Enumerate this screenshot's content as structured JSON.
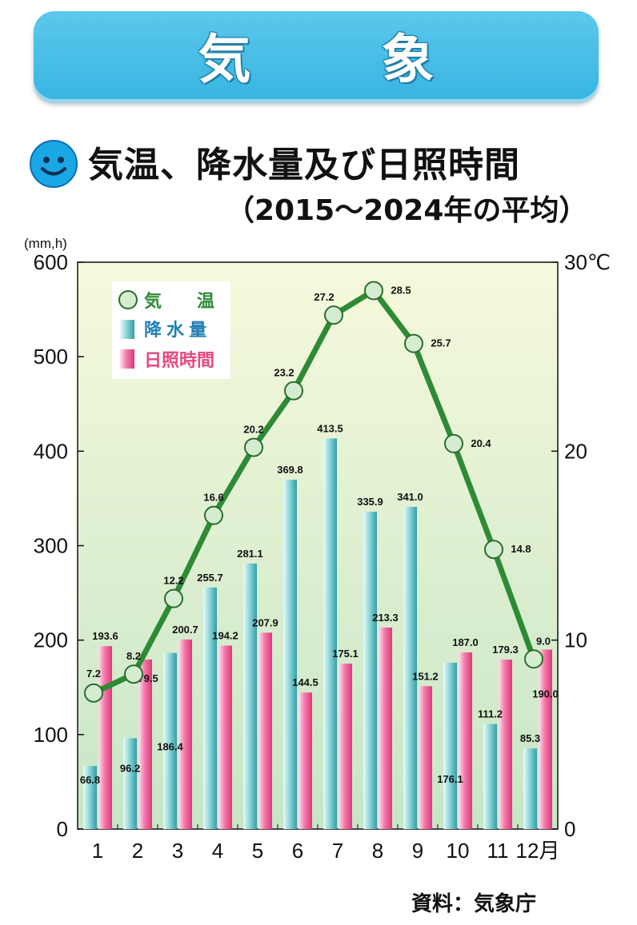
{
  "banner": {
    "title": "気 象"
  },
  "heading": {
    "title": "気温、降水量及び日照時間",
    "subtitle": "（2015～2024年の平均）",
    "icon": "smiley-face-icon"
  },
  "source": "資料：気象庁",
  "colors": {
    "banner": "#3ab7e3",
    "temperature_line": "#2e8b35",
    "marker_fill": "#d6ecd0",
    "precipitation_bar": "#2f9fa8",
    "sunshine_bar": "#e0367a",
    "plot_background_top": "#f7f9dc",
    "plot_background_bottom": "#c6e6c6"
  },
  "chart_data": {
    "type": "bar",
    "categories": [
      "1",
      "2",
      "3",
      "4",
      "5",
      "6",
      "7",
      "8",
      "9",
      "10",
      "11",
      "12月"
    ],
    "left_axis": {
      "unit": "(mm,h)",
      "ylim": [
        0,
        600
      ],
      "ticks": [
        "0",
        "100",
        "200",
        "300",
        "400",
        "500",
        "600"
      ]
    },
    "right_axis": {
      "unit": "30℃",
      "ylim": [
        0,
        30
      ],
      "ticks": [
        "0",
        "10",
        "20",
        "30℃"
      ]
    },
    "series": [
      {
        "name": "降 水 量",
        "type": "bar",
        "axis": "left",
        "values": [
          66.8,
          96.2,
          186.4,
          255.7,
          281.1,
          369.8,
          413.5,
          335.9,
          341.0,
          176.1,
          111.2,
          85.3
        ],
        "labels": [
          "66.8",
          "96.2",
          "186.4",
          "255.7",
          "281.1",
          "369.8",
          "413.5",
          "335.9",
          "341.0",
          "176.1",
          "111.2",
          "85.3"
        ]
      },
      {
        "name": "日照時間",
        "type": "bar",
        "axis": "left",
        "values": [
          193.6,
          179.5,
          200.7,
          194.2,
          207.9,
          144.5,
          175.1,
          213.3,
          151.2,
          187.0,
          179.3,
          190.0
        ],
        "labels": [
          "193.6",
          "179.5",
          "200.7",
          "194.2",
          "207.9",
          "144.5",
          "175.1",
          "213.3",
          "151.2",
          "187.0",
          "179.3",
          "190.0"
        ]
      },
      {
        "name": "気　　温",
        "type": "line",
        "axis": "right",
        "values": [
          7.2,
          8.2,
          12.2,
          16.6,
          20.2,
          23.2,
          27.2,
          28.5,
          25.7,
          20.4,
          14.8,
          9.0
        ],
        "labels": [
          "7.2",
          "8.2",
          "12.2",
          "16.6",
          "20.2",
          "23.2",
          "27.2",
          "28.5",
          "25.7",
          "20.4",
          "14.8",
          "9.0"
        ]
      }
    ],
    "legend": {
      "placement": "top-left"
    },
    "grid": false
  }
}
